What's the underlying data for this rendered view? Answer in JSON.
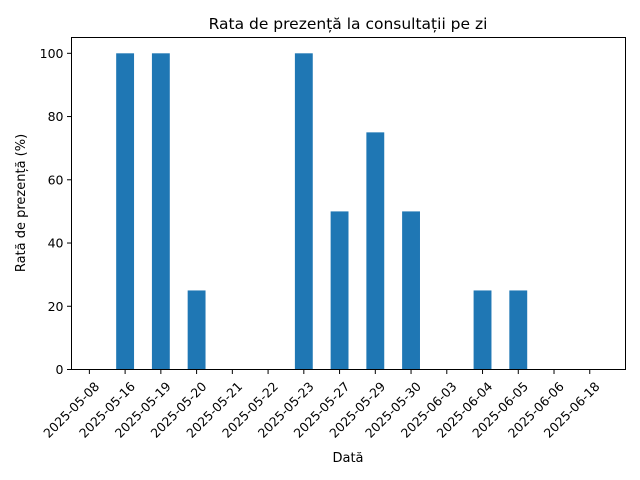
{
  "chart_data": {
    "type": "bar",
    "title": "Rata de prezență la consultații pe zi",
    "xlabel": "Dată",
    "ylabel": "Rată de prezență (%)",
    "categories": [
      "2025-05-08",
      "2025-05-16",
      "2025-05-19",
      "2025-05-20",
      "2025-05-21",
      "2025-05-22",
      "2025-05-23",
      "2025-05-27",
      "2025-05-29",
      "2025-05-30",
      "2025-06-03",
      "2025-06-04",
      "2025-06-05",
      "2025-06-06",
      "2025-06-18"
    ],
    "values": [
      0,
      100,
      100,
      25,
      0,
      0,
      100,
      50,
      75,
      50,
      0,
      25,
      25,
      0,
      0
    ],
    "ylim": [
      0,
      105
    ],
    "yticks": [
      0,
      20,
      40,
      60,
      80,
      100
    ],
    "grid": false,
    "legend": "none",
    "bar_color": "#1f77b4"
  }
}
